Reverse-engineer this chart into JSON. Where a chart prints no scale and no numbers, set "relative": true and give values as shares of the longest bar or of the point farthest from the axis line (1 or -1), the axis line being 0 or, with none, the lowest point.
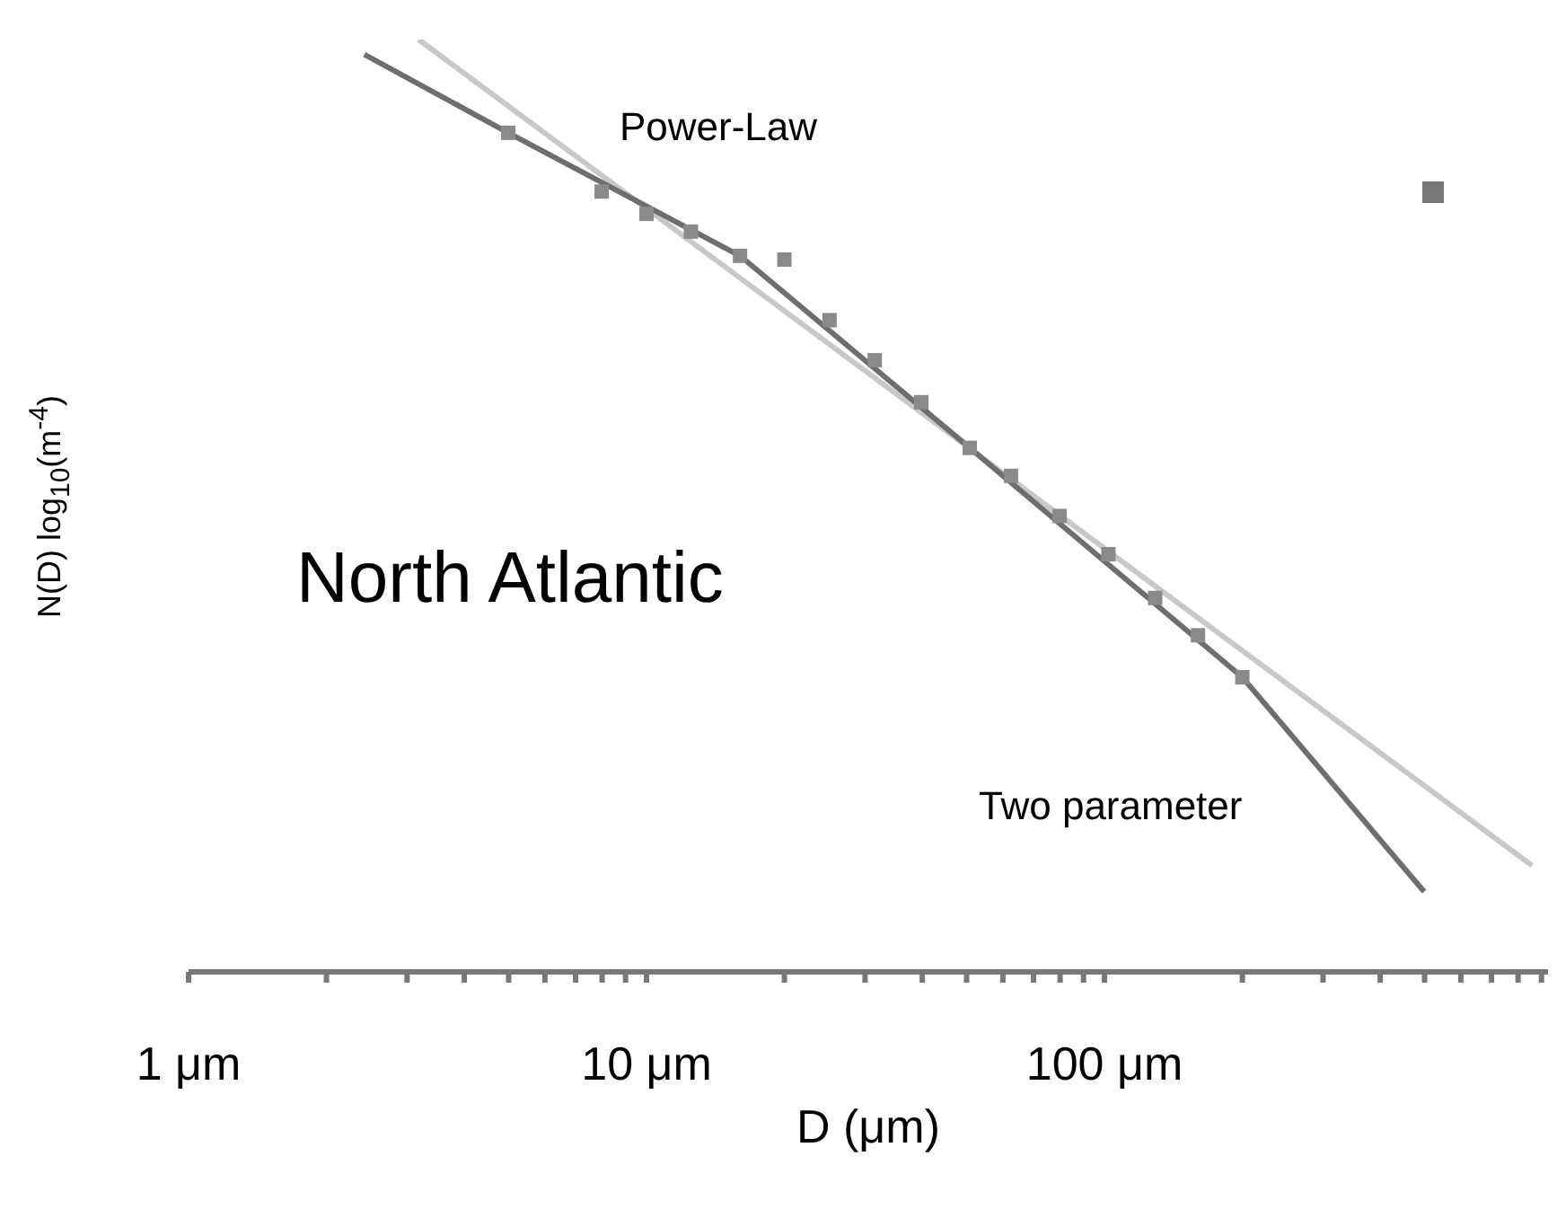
{
  "chart_data": {
    "type": "line",
    "relative": true,
    "log": "x",
    "xlabel": "D (μm)",
    "ylabel": "N(D) log$_{10}$(m$^{-4}$)",
    "xlim": [
      1,
      930
    ],
    "xticks": [
      {
        "value": 1,
        "label": "1 μm"
      },
      {
        "value": 2,
        "label": null
      },
      {
        "value": 3,
        "label": null
      },
      {
        "value": 4,
        "label": null
      },
      {
        "value": 5,
        "label": null
      },
      {
        "value": 6,
        "label": null
      },
      {
        "value": 7,
        "label": null
      },
      {
        "value": 8,
        "label": null
      },
      {
        "value": 9,
        "label": null
      },
      {
        "value": 10,
        "label": "10 μm"
      },
      {
        "value": 20,
        "label": null
      },
      {
        "value": 30,
        "label": null
      },
      {
        "value": 40,
        "label": null
      },
      {
        "value": 50,
        "label": null
      },
      {
        "value": 60,
        "label": null
      },
      {
        "value": 70,
        "label": null
      },
      {
        "value": 80,
        "label": null
      },
      {
        "value": 90,
        "label": null
      },
      {
        "value": 100,
        "label": "100 μm"
      },
      {
        "value": 200,
        "label": null
      },
      {
        "value": 300,
        "label": null
      },
      {
        "value": 400,
        "label": null
      },
      {
        "value": 500,
        "label": null
      },
      {
        "value": 600,
        "label": null
      },
      {
        "value": 700,
        "label": null
      },
      {
        "value": 800,
        "label": null
      },
      {
        "value": 900,
        "label": null
      }
    ],
    "annotations": [
      "North Atlantic"
    ],
    "series": [
      {
        "type": "scatter",
        "marker": "square",
        "color": "#8a8a8a",
        "x": [
          4.99,
          7.98,
          10.0,
          12.5,
          16.0,
          20.0,
          25.1,
          31.5,
          39.8,
          50.8,
          62.5,
          79.8,
          102,
          129,
          160,
          200
        ],
        "values": [
          0.9,
          0.837,
          0.813,
          0.794,
          0.768,
          0.764,
          0.699,
          0.656,
          0.611,
          0.562,
          0.532,
          0.489,
          0.448,
          0.401,
          0.361,
          0.316
        ]
      },
      {
        "name": "Power-Law",
        "marker": "none",
        "color": "#c8c8c8",
        "x": [
          3.18,
          858
        ],
        "values": [
          1,
          0.114
        ]
      },
      {
        "name": "Two parameter",
        "marker": "none",
        "color": "#6e6e6e",
        "x": [
          2.42,
          4.99,
          16.0,
          50.8,
          200,
          499
        ],
        "values": [
          0.984,
          0.9,
          0.768,
          0.562,
          0.316,
          0.086
        ]
      }
    ]
  }
}
